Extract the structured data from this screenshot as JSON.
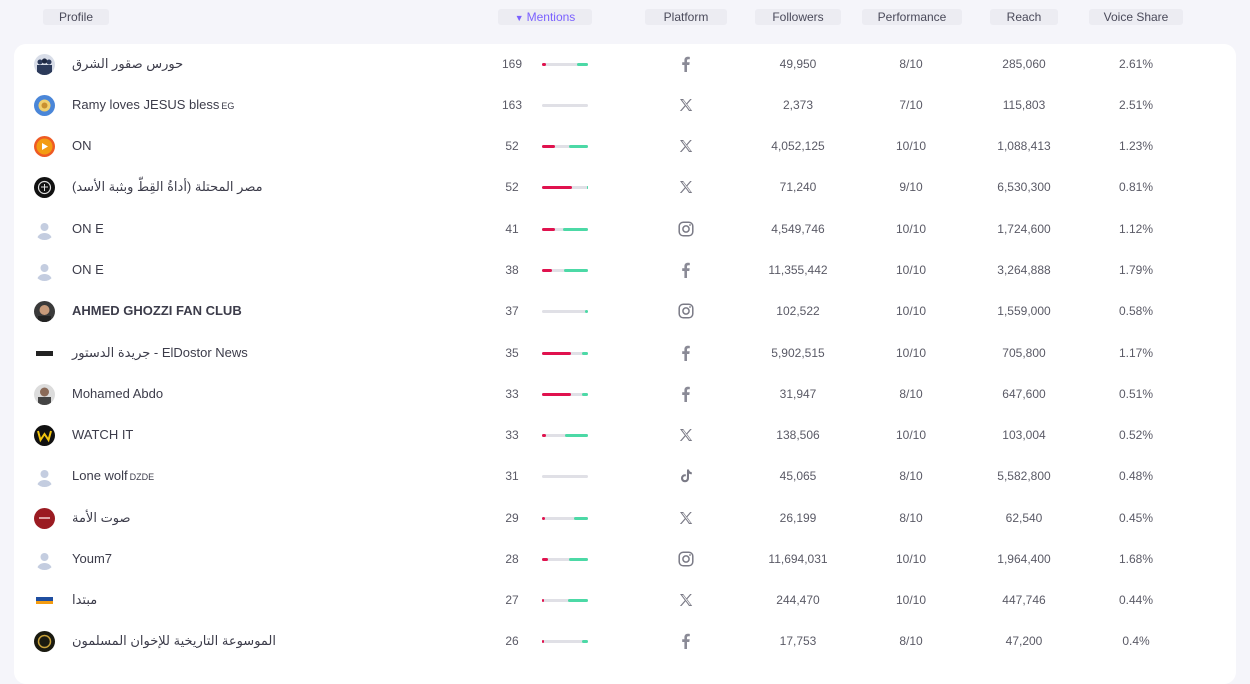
{
  "header": {
    "profile": "Profile",
    "mentions": "Mentions",
    "platform": "Platform",
    "followers": "Followers",
    "performance": "Performance",
    "reach": "Reach",
    "voice_share": "Voice Share"
  },
  "colors": {
    "accent": "#7b61ff",
    "negative": "#e0124e",
    "positive": "#4cd9a6",
    "neutral": "#e0e0e6"
  },
  "rows": [
    {
      "name": "حورس صقور الشرق",
      "avatar": "avatar-group",
      "mentions": "169",
      "sentiment": {
        "neg": 0.08,
        "pos": 0.25
      },
      "platform": "facebook-icon",
      "followers": "49,950",
      "performance": "8/10",
      "reach": "285,060",
      "voice_share": "2.61%"
    },
    {
      "name": "Ramy loves JESUS bless",
      "name_suffix": "EG",
      "avatar": "avatar-blue",
      "mentions": "163",
      "sentiment": {
        "neg": 0,
        "pos": 0
      },
      "platform": "x-icon",
      "followers": "2,373",
      "performance": "7/10",
      "reach": "115,803",
      "voice_share": "2.51%"
    },
    {
      "name": "ON",
      "avatar": "avatar-orange",
      "mentions": "52",
      "sentiment": {
        "neg": 0.28,
        "pos": 0.42
      },
      "platform": "x-icon",
      "followers": "4,052,125",
      "performance": "10/10",
      "reach": "1,088,413",
      "voice_share": "1.23%"
    },
    {
      "name": "مصر المحتلة (أداةُ القِطّ وبثبة الأسد)",
      "avatar": "avatar-dark",
      "mentions": "52",
      "sentiment": {
        "neg": 0.66,
        "pos": 0.02
      },
      "platform": "x-icon",
      "followers": "71,240",
      "performance": "9/10",
      "reach": "6,530,300",
      "voice_share": "0.81%"
    },
    {
      "name": "ON E",
      "avatar": "avatar-default",
      "mentions": "41",
      "sentiment": {
        "neg": 0.28,
        "pos": 0.54
      },
      "platform": "instagram-icon",
      "followers": "4,549,746",
      "performance": "10/10",
      "reach": "1,724,600",
      "voice_share": "1.12%"
    },
    {
      "name": "ON E",
      "avatar": "avatar-default",
      "mentions": "38",
      "sentiment": {
        "neg": 0.22,
        "pos": 0.52
      },
      "platform": "facebook-icon",
      "followers": "11,355,442",
      "performance": "10/10",
      "reach": "3,264,888",
      "voice_share": "1.79%"
    },
    {
      "name": "AHMED GHOZZI FAN CLUB",
      "bold": true,
      "avatar": "avatar-photo",
      "mentions": "37",
      "sentiment": {
        "neg": 0,
        "pos": 0.06
      },
      "platform": "instagram-icon",
      "followers": "102,522",
      "performance": "10/10",
      "reach": "1,559,000",
      "voice_share": "0.58%"
    },
    {
      "name": "جريدة الدستور - ElDostor News",
      "avatar": "avatar-logo",
      "mentions": "35",
      "sentiment": {
        "neg": 0.64,
        "pos": 0.14
      },
      "platform": "facebook-icon",
      "followers": "5,902,515",
      "performance": "10/10",
      "reach": "705,800",
      "voice_share": "1.17%"
    },
    {
      "name": "Mohamed Abdo",
      "avatar": "avatar-photo2",
      "mentions": "33",
      "sentiment": {
        "neg": 0.64,
        "pos": 0.14
      },
      "platform": "facebook-icon",
      "followers": "31,947",
      "performance": "8/10",
      "reach": "647,600",
      "voice_share": "0.51%"
    },
    {
      "name": "WATCH IT",
      "avatar": "avatar-watchit",
      "mentions": "33",
      "sentiment": {
        "neg": 0.08,
        "pos": 0.5
      },
      "platform": "x-icon",
      "followers": "138,506",
      "performance": "10/10",
      "reach": "103,004",
      "voice_share": "0.52%"
    },
    {
      "name": "Lone wolf",
      "name_suffix": "DZDE",
      "avatar": "avatar-default",
      "mentions": "31",
      "sentiment": {
        "neg": 0,
        "pos": 0
      },
      "platform": "tiktok-icon",
      "followers": "45,065",
      "performance": "8/10",
      "reach": "5,582,800",
      "voice_share": "0.48%"
    },
    {
      "name": "صوت الأمة",
      "avatar": "avatar-red",
      "mentions": "29",
      "sentiment": {
        "neg": 0.06,
        "pos": 0.3
      },
      "platform": "x-icon",
      "followers": "26,199",
      "performance": "8/10",
      "reach": "62,540",
      "voice_share": "0.45%"
    },
    {
      "name": "Youm7",
      "avatar": "avatar-default",
      "mentions": "28",
      "sentiment": {
        "neg": 0.12,
        "pos": 0.42
      },
      "platform": "instagram-icon",
      "followers": "11,694,031",
      "performance": "10/10",
      "reach": "1,964,400",
      "voice_share": "1.68%"
    },
    {
      "name": "مبتدا",
      "avatar": "avatar-mobtada",
      "mentions": "27",
      "sentiment": {
        "neg": 0.04,
        "pos": 0.44
      },
      "platform": "x-icon",
      "followers": "244,470",
      "performance": "10/10",
      "reach": "447,746",
      "voice_share": "0.44%"
    },
    {
      "name": "الموسوعة التاريخية للإخوان المسلمون",
      "avatar": "avatar-gold",
      "mentions": "26",
      "sentiment": {
        "neg": 0.04,
        "pos": 0.12
      },
      "platform": "facebook-icon",
      "followers": "17,753",
      "performance": "8/10",
      "reach": "47,200",
      "voice_share": "0.4%"
    }
  ]
}
